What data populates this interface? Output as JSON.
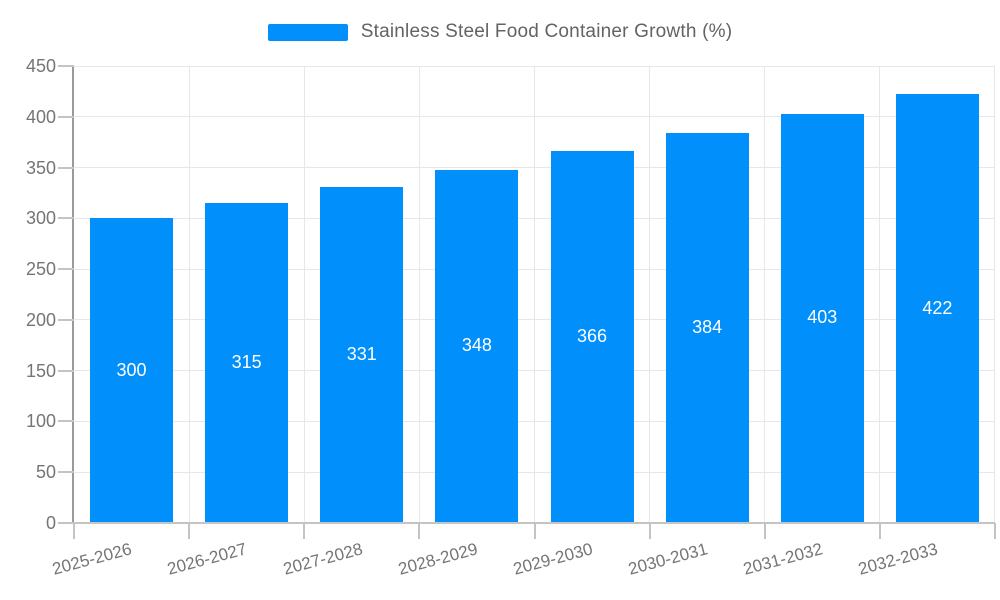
{
  "legend": {
    "label": "Stainless Steel Food Container Growth (%)",
    "swatch_color": "#008FFB"
  },
  "chart_data": {
    "type": "bar",
    "title": "Stainless Steel Food Container Growth (%)",
    "categories": [
      "2025-2026",
      "2026-2027",
      "2027-2028",
      "2028-2029",
      "2029-2030",
      "2030-2031",
      "2031-2032",
      "2032-2033"
    ],
    "values": [
      300,
      315,
      331,
      348,
      366,
      384,
      403,
      422
    ],
    "xlabel": "",
    "ylabel": "",
    "ylim": [
      0,
      450
    ],
    "yticks": [
      0,
      50,
      100,
      150,
      200,
      250,
      300,
      350,
      400,
      450
    ],
    "grid": true,
    "legend_position": "top",
    "bar_color": "#008FFB",
    "value_label_color": "#ffffff",
    "axis_label_color": "#757575",
    "grid_color": "#e7e7e7",
    "x_label_rotation_deg": -15
  }
}
